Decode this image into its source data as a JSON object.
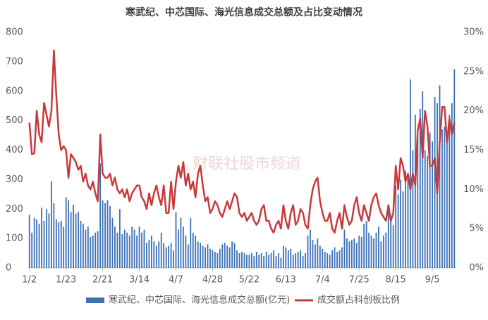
{
  "chart_data": {
    "type": "bar-line",
    "title": "寒武纪、中芯国际、海光信息成交总额及占比变动情况",
    "watermark": "财联社股市频道",
    "categories": [
      "1/2",
      null,
      null,
      null,
      null,
      null,
      null,
      null,
      null,
      null,
      null,
      null,
      null,
      null,
      null,
      "1/23",
      null,
      null,
      null,
      null,
      null,
      null,
      null,
      null,
      null,
      null,
      null,
      null,
      null,
      null,
      "2/21",
      null,
      null,
      null,
      null,
      null,
      null,
      null,
      null,
      null,
      null,
      null,
      null,
      null,
      null,
      "3/14",
      null,
      null,
      null,
      null,
      null,
      null,
      null,
      null,
      null,
      null,
      null,
      null,
      null,
      null,
      "4/7",
      null,
      null,
      null,
      null,
      null,
      null,
      null,
      null,
      null,
      null,
      null,
      null,
      null,
      null,
      "4/28",
      null,
      null,
      null,
      null,
      null,
      null,
      null,
      null,
      null,
      null,
      null,
      null,
      null,
      null,
      "5/22",
      null,
      null,
      null,
      null,
      null,
      null,
      null,
      null,
      null,
      null,
      null,
      null,
      null,
      null,
      "6/13",
      null,
      null,
      null,
      null,
      null,
      null,
      null,
      null,
      null,
      null,
      null,
      null,
      null,
      null,
      "7/4",
      null,
      null,
      null,
      null,
      null,
      null,
      null,
      null,
      null,
      null,
      null,
      null,
      null,
      null,
      "7/25",
      null,
      null,
      null,
      null,
      null,
      null,
      null,
      null,
      null,
      null,
      null,
      null,
      null,
      null,
      "8/15",
      null,
      null,
      null,
      null,
      null,
      null,
      null,
      null,
      null,
      null,
      null,
      null,
      null,
      null,
      "9/5",
      null,
      null,
      null,
      null,
      null,
      null,
      null,
      null,
      null
    ],
    "series": [
      {
        "name": "寒武纪、中芯国际、海光信息成交总额(亿元)",
        "color": "#3b6fb6",
        "kind": "bar",
        "values": [
          180,
          120,
          170,
          165,
          150,
          205,
          160,
          200,
          185,
          295,
          220,
          165,
          155,
          160,
          140,
          240,
          230,
          190,
          215,
          185,
          190,
          160,
          150,
          130,
          140,
          105,
          110,
          120,
          125,
          355,
          230,
          220,
          230,
          210,
          170,
          140,
          120,
          200,
          115,
          130,
          120,
          110,
          140,
          130,
          110,
          140,
          120,
          130,
          85,
          95,
          110,
          90,
          75,
          90,
          120,
          85,
          70,
          75,
          85,
          60,
          190,
          130,
          170,
          140,
          110,
          80,
          170,
          120,
          110,
          90,
          85,
          75,
          70,
          80,
          65,
          60,
          55,
          50,
          65,
          80,
          85,
          75,
          70,
          90,
          85,
          60,
          50,
          55,
          50,
          45,
          45,
          50,
          40,
          55,
          45,
          50,
          40,
          55,
          45,
          50,
          60,
          40,
          50,
          35,
          75,
          70,
          60,
          65,
          45,
          50,
          55,
          60,
          40,
          50,
          110,
          130,
          95,
          80,
          100,
          75,
          65,
          55,
          50,
          45,
          60,
          70,
          55,
          60,
          70,
          130,
          100,
          90,
          95,
          100,
          85,
          110,
          105,
          150,
          160,
          120,
          110,
          100,
          120,
          140,
          90,
          110,
          120,
          190,
          160,
          145,
          280,
          250,
          300,
          260,
          330,
          310,
          640,
          400,
          520,
          450,
          540,
          600,
          400,
          380,
          460,
          430,
          580,
          560,
          620,
          470,
          480,
          460,
          520,
          560,
          675
        ]
      },
      {
        "name": "成交额占科创板比例",
        "color": "#c8393b",
        "kind": "line",
        "axis": "y2",
        "values": [
          18.5,
          14.5,
          14.6,
          20,
          17,
          16,
          21,
          19.5,
          18,
          20,
          27.7,
          22,
          17,
          15,
          15.5,
          15,
          11.5,
          14.5,
          14,
          13.5,
          12.5,
          13,
          11,
          12,
          10.5,
          10,
          11,
          9.5,
          8.5,
          17,
          12,
          11.5,
          11.5,
          12,
          10.5,
          11.5,
          10,
          9.5,
          10,
          9,
          10,
          8.5,
          9.5,
          10,
          10.5,
          10.5,
          9,
          8.5,
          7.5,
          9.5,
          8,
          9.5,
          10.5,
          9,
          8,
          10.5,
          7,
          7,
          11,
          7.5,
          11,
          13,
          11.5,
          13.5,
          10.5,
          12,
          10,
          11,
          9,
          12,
          13,
          10.5,
          8.5,
          9,
          7,
          7.5,
          8.5,
          8,
          7,
          6.5,
          7.5,
          8.5,
          7.5,
          8.5,
          9.5,
          9,
          7,
          6.5,
          7,
          6,
          6.5,
          7,
          6,
          5.5,
          6,
          7.5,
          8,
          6,
          6,
          5,
          4.5,
          5.5,
          6,
          5,
          8,
          6,
          5,
          7,
          8,
          5.5,
          6,
          7.5,
          7,
          5.5,
          5,
          8,
          10,
          11,
          11.5,
          8.5,
          7,
          6,
          6,
          7,
          5,
          4.5,
          6,
          7,
          5,
          8,
          6.5,
          5.5,
          6,
          8,
          9,
          7,
          6,
          8,
          7,
          6,
          8,
          9,
          9.5,
          8,
          7,
          6.5,
          6,
          8,
          6,
          7,
          13,
          10,
          14,
          13,
          11,
          12,
          10,
          12,
          10.5,
          17.5,
          19,
          14,
          20,
          18,
          13,
          13,
          14,
          9.5,
          16,
          20.5,
          20.5,
          16,
          19,
          17,
          18.5
        ]
      }
    ],
    "ylim": [
      0,
      800
    ],
    "yticks": [
      0,
      100,
      200,
      300,
      400,
      500,
      600,
      700,
      800
    ],
    "y2lim": [
      0,
      30
    ],
    "y2ticks": [
      {
        "value": 0,
        "label": "0%"
      },
      {
        "value": 5,
        "label": "5%"
      },
      {
        "value": 10,
        "label": "10%"
      },
      {
        "value": 15,
        "label": "15%"
      },
      {
        "value": 20,
        "label": "20%"
      },
      {
        "value": 25,
        "label": "25%"
      },
      {
        "value": 30,
        "label": "30%"
      }
    ],
    "legend": "bottom"
  }
}
